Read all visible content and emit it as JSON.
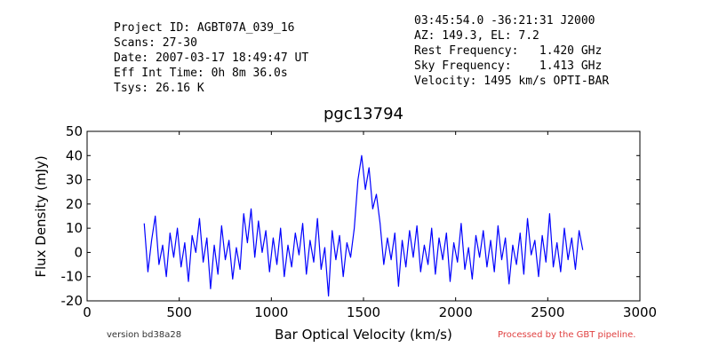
{
  "header": {
    "left": [
      "Project ID: AGBT07A_039_16",
      "Scans: 27-30",
      "Date: 2007-03-17 18:49:47 UT",
      "Eff Int Time: 0h 8m 36.0s",
      "Tsys: 26.16 K"
    ],
    "right": [
      "03:45:54.0 -36:21:31 J2000",
      "AZ: 149.3, EL: 7.2",
      "Rest Frequency:   1.420 GHz",
      "Sky Frequency:    1.413 GHz",
      "Velocity: 1495 km/s OPTI-BAR"
    ]
  },
  "chart_data": {
    "type": "line",
    "title": "pgc13794",
    "xlabel": "Bar Optical Velocity (km/s)",
    "ylabel": "Flux Density (mJy)",
    "xlim": [
      0,
      3000
    ],
    "xticks": [
      0,
      500,
      1000,
      1500,
      2000,
      2500,
      3000
    ],
    "ylim": [
      -20,
      50
    ],
    "yticks": [
      -20,
      -10,
      0,
      10,
      20,
      30,
      40,
      50
    ],
    "series": [
      {
        "color": "#0000ff",
        "x": [
          310,
          330,
          350,
          370,
          390,
          410,
          430,
          450,
          470,
          490,
          510,
          530,
          550,
          570,
          590,
          610,
          630,
          650,
          670,
          690,
          710,
          730,
          750,
          770,
          790,
          810,
          830,
          850,
          870,
          890,
          910,
          930,
          950,
          970,
          990,
          1010,
          1030,
          1050,
          1070,
          1090,
          1110,
          1130,
          1150,
          1170,
          1190,
          1210,
          1230,
          1250,
          1270,
          1290,
          1310,
          1330,
          1350,
          1370,
          1390,
          1410,
          1430,
          1450,
          1470,
          1490,
          1510,
          1530,
          1550,
          1570,
          1590,
          1610,
          1630,
          1650,
          1670,
          1690,
          1710,
          1730,
          1750,
          1770,
          1790,
          1810,
          1830,
          1850,
          1870,
          1890,
          1910,
          1930,
          1950,
          1970,
          1990,
          2010,
          2030,
          2050,
          2070,
          2090,
          2110,
          2130,
          2150,
          2170,
          2190,
          2210,
          2230,
          2250,
          2270,
          2290,
          2310,
          2330,
          2350,
          2370,
          2390,
          2410,
          2430,
          2450,
          2470,
          2490,
          2510,
          2530,
          2550,
          2570,
          2590,
          2610,
          2630,
          2650,
          2670,
          2690
        ],
        "values": [
          12,
          -8,
          5,
          15,
          -5,
          3,
          -10,
          8,
          -2,
          10,
          -6,
          4,
          -12,
          7,
          0,
          14,
          -4,
          6,
          -15,
          3,
          -9,
          11,
          -3,
          5,
          -11,
          2,
          -7,
          16,
          4,
          18,
          -2,
          13,
          0,
          9,
          -8,
          6,
          -5,
          10,
          -10,
          3,
          -6,
          8,
          -1,
          12,
          -9,
          5,
          -4,
          14,
          -7,
          2,
          -18,
          9,
          -3,
          7,
          -10,
          4,
          -2,
          10,
          30,
          40,
          26,
          35,
          18,
          24,
          12,
          -5,
          6,
          -3,
          8,
          -14,
          5,
          -6,
          9,
          -2,
          11,
          -8,
          3,
          -5,
          10,
          -9,
          6,
          -3,
          8,
          -12,
          4,
          -4,
          12,
          -7,
          2,
          -11,
          7,
          -2,
          9,
          -6,
          5,
          -8,
          11,
          -3,
          6,
          -13,
          3,
          -5,
          8,
          -9,
          14,
          -1,
          5,
          -10,
          7,
          -4,
          16,
          -6,
          4,
          -8,
          10,
          -3,
          6,
          -7,
          9,
          1
        ]
      }
    ]
  },
  "footer": {
    "version": "version bd38a28",
    "pipeline": "Processed by the GBT pipeline."
  }
}
